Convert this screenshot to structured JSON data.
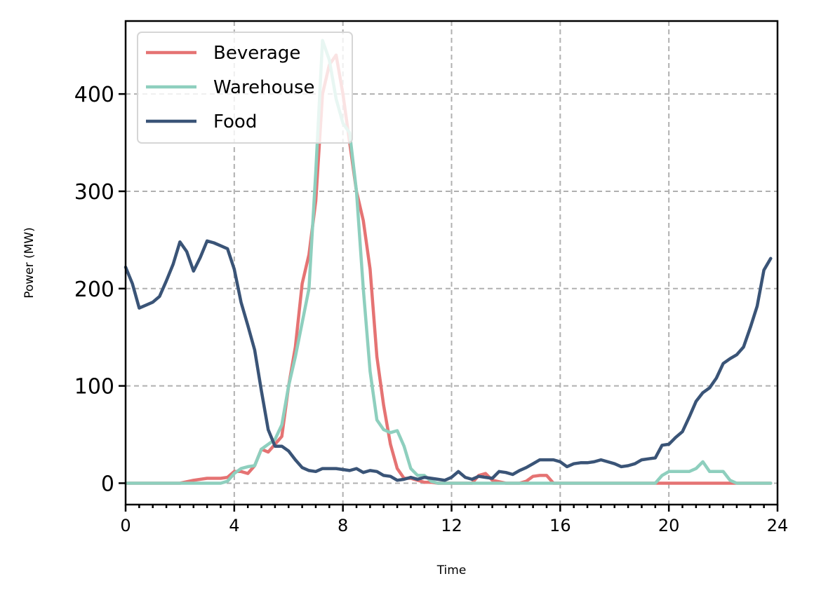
{
  "chart_data": {
    "type": "line",
    "title": "",
    "xlabel": "Time",
    "ylabel": "Power (MW)",
    "xlim": [
      0,
      24
    ],
    "ylim": [
      -22,
      475
    ],
    "xticks": [
      0,
      4,
      8,
      12,
      16,
      20,
      24
    ],
    "xtick_labels": [
      "0",
      "4",
      "8",
      "12",
      "16",
      "20",
      "24"
    ],
    "x_minor_step": 0.5,
    "yticks": [
      0,
      100,
      200,
      300,
      400
    ],
    "ytick_labels": [
      "0",
      "100",
      "200",
      "300",
      "400"
    ],
    "grid": true,
    "legend_position": "upper-left",
    "series": [
      {
        "name": "Beverage",
        "color": "#e57373",
        "x": [
          0,
          2,
          2.5,
          3,
          3.5,
          3.75,
          4,
          4.25,
          4.5,
          4.75,
          5,
          5.25,
          5.5,
          5.75,
          6,
          6.25,
          6.5,
          6.75,
          7,
          7.25,
          7.5,
          7.75,
          8,
          8.25,
          8.5,
          8.75,
          9,
          9.25,
          9.5,
          9.75,
          10,
          10.25,
          10.5,
          10.75,
          11,
          11.25,
          11.5,
          12,
          12.75,
          13,
          13.25,
          13.5,
          14,
          14.5,
          14.75,
          15,
          15.25,
          15.5,
          15.75,
          16,
          20,
          22,
          23,
          23.75
        ],
        "y": [
          0,
          0,
          3,
          5,
          5,
          6,
          12,
          12,
          10,
          18,
          35,
          32,
          40,
          48,
          100,
          140,
          205,
          235,
          290,
          400,
          430,
          440,
          400,
          350,
          300,
          270,
          220,
          130,
          80,
          40,
          15,
          5,
          5,
          3,
          1,
          1,
          0,
          0,
          0,
          8,
          10,
          3,
          0,
          0,
          2,
          7,
          8,
          8,
          0,
          0,
          0,
          0,
          0,
          0
        ]
      },
      {
        "name": "Warehouse",
        "color": "#8ecfbe",
        "x": [
          0,
          3.5,
          3.75,
          4,
          4.25,
          4.5,
          4.75,
          5,
          5.25,
          5.5,
          5.75,
          6,
          6.25,
          6.5,
          6.75,
          7,
          7.25,
          7.5,
          7.75,
          8,
          8.25,
          8.5,
          8.75,
          9,
          9.25,
          9.5,
          9.75,
          10,
          10.25,
          10.5,
          10.75,
          11,
          11.25,
          11.5,
          12,
          16,
          19.5,
          19.75,
          20,
          20.25,
          20.5,
          20.75,
          21,
          21.25,
          21.5,
          21.75,
          22,
          22.25,
          22.5,
          23,
          23.75
        ],
        "y": [
          0,
          0,
          2,
          10,
          15,
          17,
          18,
          35,
          40,
          45,
          60,
          100,
          130,
          165,
          200,
          320,
          455,
          435,
          395,
          370,
          360,
          300,
          200,
          115,
          65,
          55,
          52,
          54,
          38,
          15,
          8,
          8,
          2,
          0,
          0,
          0,
          0,
          8,
          12,
          12,
          12,
          12,
          15,
          22,
          12,
          12,
          12,
          3,
          0,
          0,
          0
        ]
      },
      {
        "name": "Food",
        "color": "#3a5477",
        "x": [
          0,
          0.25,
          0.5,
          0.75,
          1,
          1.25,
          1.5,
          1.75,
          2,
          2.25,
          2.5,
          2.75,
          3,
          3.25,
          3.5,
          3.75,
          4,
          4.25,
          4.5,
          4.75,
          5,
          5.25,
          5.5,
          5.75,
          6,
          6.25,
          6.5,
          6.75,
          7,
          7.25,
          7.5,
          7.75,
          8,
          8.25,
          8.5,
          8.75,
          9,
          9.25,
          9.5,
          9.75,
          10,
          10.25,
          10.5,
          10.75,
          11,
          11.25,
          11.5,
          11.75,
          12,
          12.25,
          12.5,
          12.75,
          13,
          13.25,
          13.5,
          13.75,
          14,
          14.25,
          14.5,
          14.75,
          15,
          15.25,
          15.5,
          15.75,
          16,
          16.25,
          16.5,
          16.75,
          17,
          17.25,
          17.5,
          17.75,
          18,
          18.25,
          18.5,
          18.75,
          19,
          19.25,
          19.5,
          19.75,
          20,
          20.25,
          20.5,
          20.75,
          21,
          21.25,
          21.5,
          21.75,
          22,
          22.25,
          22.5,
          22.75,
          23,
          23.25,
          23.5,
          23.75
        ],
        "y": [
          222,
          205,
          180,
          183,
          186,
          192,
          208,
          225,
          248,
          238,
          218,
          232,
          249,
          247,
          244,
          241,
          220,
          186,
          162,
          137,
          95,
          55,
          38,
          38,
          33,
          24,
          16,
          13,
          12,
          15,
          15,
          15,
          14,
          13,
          15,
          11,
          13,
          12,
          8,
          7,
          3,
          4,
          6,
          4,
          6,
          5,
          4,
          3,
          6,
          12,
          6,
          4,
          7,
          6,
          5,
          12,
          11,
          9,
          13,
          16,
          20,
          24,
          24,
          24,
          22,
          17,
          20,
          21,
          21,
          22,
          24,
          22,
          20,
          17,
          18,
          20,
          24,
          25,
          26,
          39,
          40,
          47,
          53,
          68,
          84,
          93,
          98,
          108,
          123,
          128,
          132,
          140,
          160,
          182,
          219,
          231
        ]
      }
    ]
  }
}
